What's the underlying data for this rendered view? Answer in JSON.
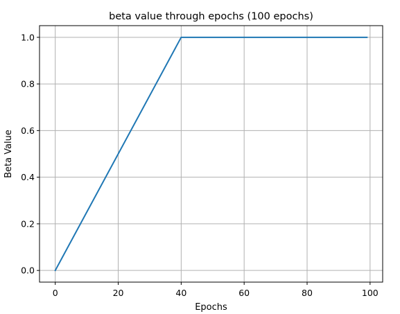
{
  "chart_data": {
    "type": "line",
    "title": "beta value through epochs (100 epochs)",
    "xlabel": "Epochs",
    "ylabel": "Beta Value",
    "xlim": [
      -5,
      104
    ],
    "ylim": [
      -0.05,
      1.05
    ],
    "xticks": [
      0,
      20,
      40,
      60,
      80,
      100
    ],
    "xtick_labels": [
      "0",
      "20",
      "40",
      "60",
      "80",
      "100"
    ],
    "yticks": [
      0.0,
      0.2,
      0.4,
      0.6,
      0.8,
      1.0
    ],
    "ytick_labels": [
      "0.0",
      "0.2",
      "0.4",
      "0.6",
      "0.8",
      "1.0"
    ],
    "grid": true,
    "series": [
      {
        "color": "#1f77b4",
        "x": [
          0,
          40,
          99
        ],
        "y": [
          0.0,
          1.0,
          1.0
        ]
      }
    ]
  }
}
